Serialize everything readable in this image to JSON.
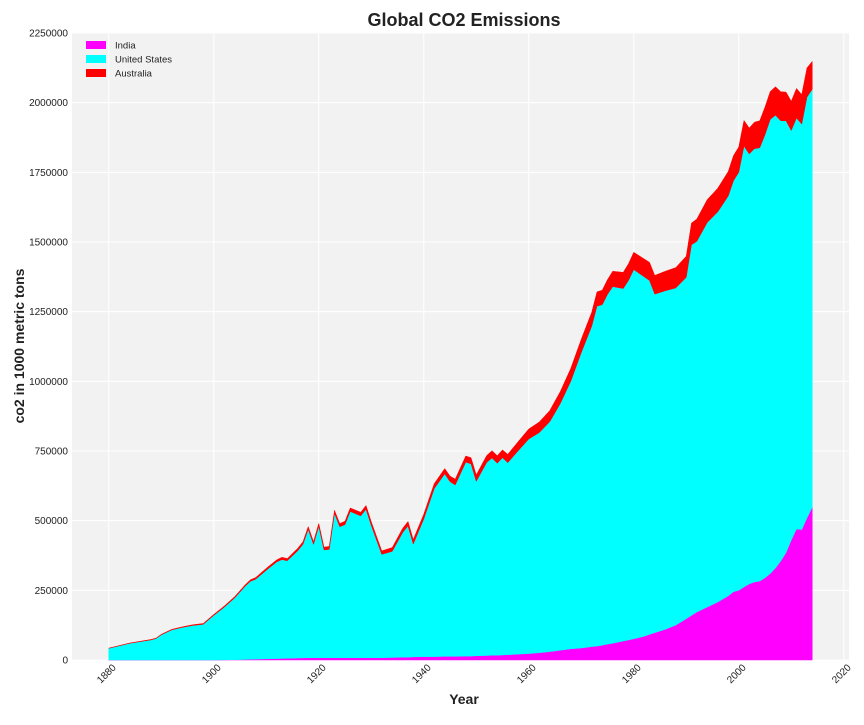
{
  "chart_data": {
    "type": "area",
    "stacked": true,
    "title": "Global CO2 Emissions",
    "xlabel": "Year",
    "ylabel": "co2 in 1000 metric tons",
    "xlim": [
      1873,
      2021
    ],
    "ylim": [
      0,
      2250000
    ],
    "xticks": [
      1880,
      1900,
      1920,
      1940,
      1960,
      1980,
      2000,
      2020
    ],
    "yticks": [
      0,
      250000,
      500000,
      750000,
      1000000,
      1250000,
      1500000,
      1750000,
      2000000,
      2250000
    ],
    "grid": true,
    "legend_position": "top-left",
    "x": [
      1880,
      1884,
      1888,
      1889,
      1890,
      1892,
      1894,
      1896,
      1898,
      1900,
      1902,
      1904,
      1906,
      1907,
      1908,
      1910,
      1912,
      1913,
      1914,
      1916,
      1917,
      1918,
      1919,
      1920,
      1921,
      1922,
      1923,
      1924,
      1925,
      1926,
      1928,
      1929,
      1930,
      1932,
      1934,
      1936,
      1937,
      1938,
      1940,
      1942,
      1944,
      1945,
      1946,
      1948,
      1949,
      1950,
      1952,
      1953,
      1954,
      1955,
      1956,
      1958,
      1960,
      1962,
      1964,
      1966,
      1968,
      1970,
      1972,
      1973,
      1974,
      1975,
      1976,
      1978,
      1979,
      1980,
      1982,
      1983,
      1984,
      1986,
      1988,
      1990,
      1991,
      1992,
      1994,
      1996,
      1998,
      1999,
      2000,
      2001,
      2002,
      2003,
      2004,
      2005,
      2006,
      2007,
      2008,
      2009,
      2010,
      2011,
      2012,
      2013,
      2014
    ],
    "series": [
      {
        "name": "India",
        "color": "#ff00ff",
        "values": [
          0,
          0,
          0,
          0,
          0,
          0,
          0,
          0,
          0,
          0,
          500,
          1000,
          2000,
          2500,
          3000,
          4000,
          5000,
          5500,
          6000,
          7000,
          7500,
          8000,
          8000,
          8000,
          8000,
          8000,
          8000,
          8000,
          8000,
          8000,
          8000,
          8000,
          8000,
          8000,
          9000,
          10000,
          10000,
          11000,
          12000,
          12000,
          13000,
          13000,
          13000,
          14000,
          14000,
          15000,
          16000,
          17000,
          17000,
          18000,
          19000,
          21000,
          23000,
          26000,
          30000,
          35000,
          40000,
          43000,
          48000,
          50000,
          53000,
          57000,
          60000,
          68000,
          72000,
          76000,
          85000,
          92000,
          98000,
          110000,
          125000,
          148000,
          160000,
          172000,
          190000,
          208000,
          230000,
          245000,
          250000,
          262000,
          273000,
          280000,
          283000,
          295000,
          310000,
          330000,
          355000,
          385000,
          430000,
          470000,
          468000,
          510000,
          548000
        ]
      },
      {
        "name": "United States",
        "color": "#00ffff",
        "values": [
          42000,
          60000,
          72000,
          77000,
          90000,
          108000,
          117000,
          124000,
          128000,
          160000,
          189000,
          222000,
          263000,
          280000,
          287000,
          318000,
          347000,
          355000,
          350000,
          385000,
          408000,
          461000,
          407000,
          472000,
          387000,
          389000,
          518000,
          470000,
          478000,
          525000,
          509000,
          533000,
          475000,
          371000,
          381000,
          448000,
          471000,
          405000,
          494000,
          603000,
          655000,
          627000,
          615000,
          696000,
          690000,
          626000,
          693000,
          708000,
          689000,
          708000,
          689000,
          730000,
          770000,
          790000,
          825000,
          885000,
          960000,
          1060000,
          1150000,
          1220000,
          1222000,
          1255000,
          1280000,
          1265000,
          1290000,
          1325000,
          1290000,
          1270000,
          1215000,
          1215000,
          1210000,
          1225000,
          1330000,
          1330000,
          1380000,
          1400000,
          1435000,
          1475000,
          1500000,
          1582000,
          1543000,
          1555000,
          1555000,
          1590000,
          1630000,
          1625000,
          1580000,
          1550000,
          1470000,
          1475000,
          1455000,
          1510000,
          1500000
        ]
      },
      {
        "name": "Australia",
        "color": "#ff0000",
        "values": [
          500,
          1000,
          1500,
          1500,
          2000,
          2000,
          2000,
          2500,
          3000,
          3500,
          4000,
          4500,
          5000,
          5500,
          6000,
          7000,
          7500,
          8000,
          8000,
          9000,
          9000,
          9500,
          9500,
          10000,
          10000,
          10500,
          11000,
          11500,
          12000,
          12500,
          13000,
          13500,
          13000,
          12500,
          13500,
          15000,
          16000,
          16000,
          17000,
          18000,
          19000,
          20000,
          21000,
          22000,
          22000,
          23000,
          25000,
          26000,
          27000,
          28000,
          30000,
          33000,
          36000,
          38000,
          40000,
          43000,
          46000,
          48000,
          50000,
          51000,
          52000,
          53000,
          55000,
          58000,
          60000,
          62000,
          64000,
          65000,
          67000,
          70000,
          73000,
          76000,
          78000,
          80000,
          82000,
          85000,
          88000,
          90000,
          91000,
          92000,
          93000,
          95000,
          97000,
          99000,
          100000,
          102000,
          104000,
          103000,
          105000,
          106000,
          106000,
          105000,
          100000
        ]
      }
    ]
  }
}
